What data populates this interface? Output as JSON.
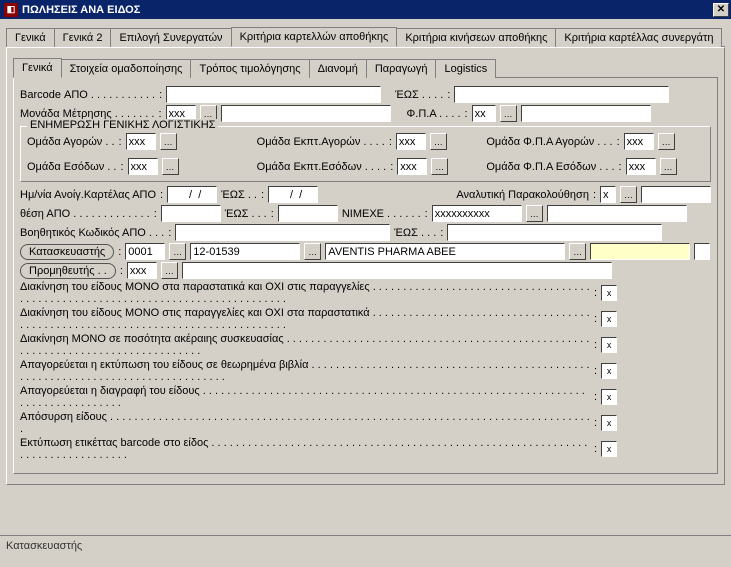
{
  "window": {
    "title": "ΠΩΛΗΣΕΙΣ ΑΝΑ ΕΙΔΟΣ"
  },
  "colors": {
    "titlebar": "#0a246a",
    "bg": "#d4d0c8",
    "highlight": "#ffffc8"
  },
  "mainTabs": {
    "items": [
      {
        "label": "Γενικά"
      },
      {
        "label": "Γενικά 2"
      },
      {
        "label": "Επιλογή Συνεργατών"
      },
      {
        "label": "Κριτήρια καρτελλών αποθήκης",
        "active": true
      },
      {
        "label": "Κριτήρια κινήσεων αποθήκης"
      },
      {
        "label": "Κριτήρια καρτέλλας συνεργάτη"
      }
    ]
  },
  "subTabs": {
    "items": [
      {
        "label": "Γενικά",
        "active": true
      },
      {
        "label": "Στοιχεία ομαδοποίησης"
      },
      {
        "label": "Τρόπος τιμολόγησης"
      },
      {
        "label": "Διανομή"
      },
      {
        "label": "Παραγωγή"
      },
      {
        "label": "Logistics"
      }
    ]
  },
  "fields": {
    "barcodeFrom": {
      "label": "Barcode ΑΠΟ . . . . . . . . . . .",
      "value": ""
    },
    "barcodeTo": {
      "label": "ΈΩΣ . . . .",
      "value": ""
    },
    "unit": {
      "label": "Μονάδα Μέτρησης . . . . . . .",
      "value": "xxx"
    },
    "vat": {
      "label": "Φ.Π.Α . . . .",
      "value": "xx"
    }
  },
  "glGroup": {
    "title": "ΕΝΗΜΕΡΩΣΗ ΓΕΝΙΚΗΣ ΛΟΓΙΣΤΙΚΗΣ",
    "buyGroup": {
      "label": "Ομάδα Αγορών . .",
      "value": "xxx"
    },
    "sellGroup": {
      "label": "Ομάδα Εσόδων . .",
      "value": "xxx"
    },
    "discBuy": {
      "label": "Ομάδα Εκπτ.Αγορών . . . .",
      "value": "xxx"
    },
    "discSell": {
      "label": "Ομάδα Εκπτ.Εσόδων . . . .",
      "value": "xxx"
    },
    "vatBuy": {
      "label": "Ομάδα Φ.Π.Α Αγορών . . .",
      "value": "xxx"
    },
    "vatSell": {
      "label": "Ομάδα Φ.Π.Α Εσόδων . . .",
      "value": "xxx"
    }
  },
  "dates": {
    "openFrom": {
      "label": "Ημ/νία Ανοίγ.Καρτέλας ΑΠΟ",
      "value": "  /  /"
    },
    "openTo": {
      "label": "ΈΩΣ . .",
      "value": "  /  /"
    },
    "analytic": {
      "label": "Αναλυτική Παρακολούθηση",
      "value": "x"
    }
  },
  "position": {
    "from": {
      "label": "θέση  ΑΠΟ . . . . . . . . . . . . .",
      "value": ""
    },
    "to": {
      "label": "ΈΩΣ . . .",
      "value": ""
    },
    "nimexe": {
      "label": "NIMEXE . . . . . .",
      "value": "xxxxxxxxxx"
    }
  },
  "auxCode": {
    "from": {
      "label": "Βοηθητικός Κωδικός ΑΠΟ . . .",
      "value": ""
    },
    "to": {
      "label": "ΈΩΣ . . .",
      "value": ""
    }
  },
  "manufacturer": {
    "button": "Κατασκευαστής",
    "code1": "0001",
    "code2": "12-01539",
    "name": "AVENTIS PHARMA ABEE"
  },
  "supplier": {
    "button": "Προμηθευτής . .",
    "code": "xxx"
  },
  "flags": [
    {
      "label": "Διακίνηση του είδους ΜΟΝΟ στα παραστατικά και ΟΧΙ στις παραγγελίες",
      "value": "x"
    },
    {
      "label": "Διακίνηση του είδους ΜΟΝΟ στις παραγγελίες και ΟΧΙ στα παραστατικά",
      "value": "x"
    },
    {
      "label": "Διακίνηση ΜΟΝΟ σε ποσότητα ακέραιης συσκευασίας",
      "value": "x"
    },
    {
      "label": "Απαγορεύεται η εκτύπωση του είδους σε θεωρημένα βιβλία",
      "value": "x"
    },
    {
      "label": "Απαγορεύεται η διαγραφή του είδους",
      "value": "x"
    },
    {
      "label": "Απόσυρση είδους",
      "value": "x"
    },
    {
      "label": "Εκτύπωση ετικέττας barcode στο είδος",
      "value": "x"
    }
  ],
  "status": "Κατασκευαστής"
}
